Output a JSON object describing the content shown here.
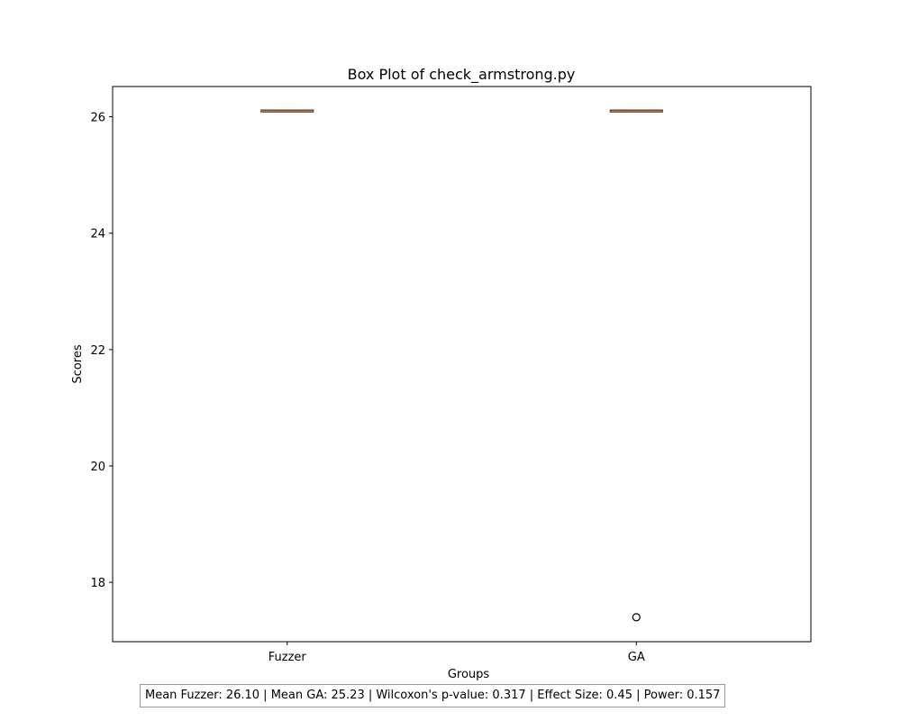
{
  "chart_data": {
    "type": "box",
    "title": "Box Plot of check_armstrong.py",
    "xlabel": "Groups",
    "ylabel": "Scores",
    "ylim": [
      16.98,
      26.52
    ],
    "yticks": [
      18,
      20,
      22,
      24,
      26
    ],
    "grid": false,
    "groups": [
      {
        "name": "Fuzzer",
        "q1": 26.1,
        "median": 26.1,
        "q3": 26.1,
        "whisker_low": 26.1,
        "whisker_high": 26.1,
        "outliers": []
      },
      {
        "name": "GA",
        "q1": 26.1,
        "median": 26.1,
        "q3": 26.1,
        "whisker_low": 26.1,
        "whisker_high": 26.1,
        "outliers": [
          17.4
        ]
      }
    ],
    "colors": {
      "box": "#000000",
      "median": "#e07b2a",
      "outlier": "#000000"
    }
  },
  "stats_text": "Mean Fuzzer: 26.10 | Mean GA: 25.23 | Wilcoxon's p-value: 0.317 | Effect Size: 0.45 | Power: 0.157"
}
